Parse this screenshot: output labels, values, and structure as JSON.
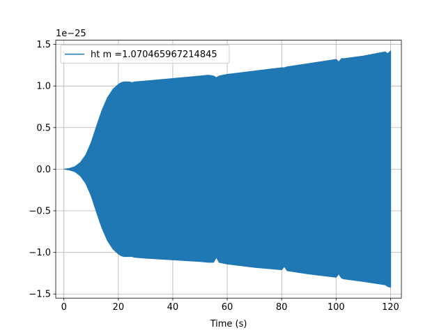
{
  "chart_data": {
    "type": "area",
    "title": "",
    "xlabel": "Time (s)",
    "ylabel": "",
    "y_offset_text": "1e−25",
    "xlim": [
      -3,
      124
    ],
    "ylim": [
      -1.55,
      1.55
    ],
    "xticks": [
      0,
      20,
      40,
      60,
      80,
      100,
      120
    ],
    "xtick_labels": [
      "0",
      "20",
      "40",
      "60",
      "80",
      "100",
      "120"
    ],
    "yticks": [
      1.5,
      1.0,
      0.5,
      0.0,
      -0.5,
      -1.0,
      -1.5
    ],
    "ytick_labels": [
      "1.5",
      "1.0",
      "0.5",
      "0.0",
      "−0.5",
      "−1.0",
      "−1.5"
    ],
    "grid": true,
    "legend_position": "upper-left",
    "series": [
      {
        "name": "ht m =1.070465967214845",
        "color": "#1f77b4",
        "envelope_x": [
          0,
          2,
          4,
          6,
          8,
          10,
          12,
          14,
          16,
          18,
          20,
          21,
          22,
          23,
          24,
          25,
          26,
          30,
          40,
          50,
          53,
          55,
          56,
          57,
          60,
          70,
          80,
          81,
          82,
          90,
          100,
          101,
          102,
          103,
          110,
          118,
          119,
          120
        ],
        "upper": [
          0.0,
          0.01,
          0.03,
          0.08,
          0.17,
          0.32,
          0.52,
          0.71,
          0.86,
          0.96,
          1.02,
          1.04,
          1.05,
          1.05,
          1.05,
          1.04,
          1.05,
          1.06,
          1.09,
          1.12,
          1.13,
          1.12,
          1.1,
          1.12,
          1.14,
          1.18,
          1.22,
          1.22,
          1.23,
          1.27,
          1.32,
          1.29,
          1.33,
          1.33,
          1.36,
          1.41,
          1.39,
          1.42
        ],
        "lower": [
          0.0,
          -0.01,
          -0.03,
          -0.08,
          -0.17,
          -0.32,
          -0.52,
          -0.71,
          -0.86,
          -0.96,
          -1.02,
          -1.04,
          -1.05,
          -1.05,
          -1.05,
          -1.05,
          -1.06,
          -1.07,
          -1.09,
          -1.11,
          -1.12,
          -1.12,
          -1.06,
          -1.12,
          -1.14,
          -1.18,
          -1.21,
          -1.17,
          -1.22,
          -1.26,
          -1.3,
          -1.26,
          -1.31,
          -1.32,
          -1.35,
          -1.39,
          -1.41,
          -1.42
        ]
      }
    ]
  }
}
